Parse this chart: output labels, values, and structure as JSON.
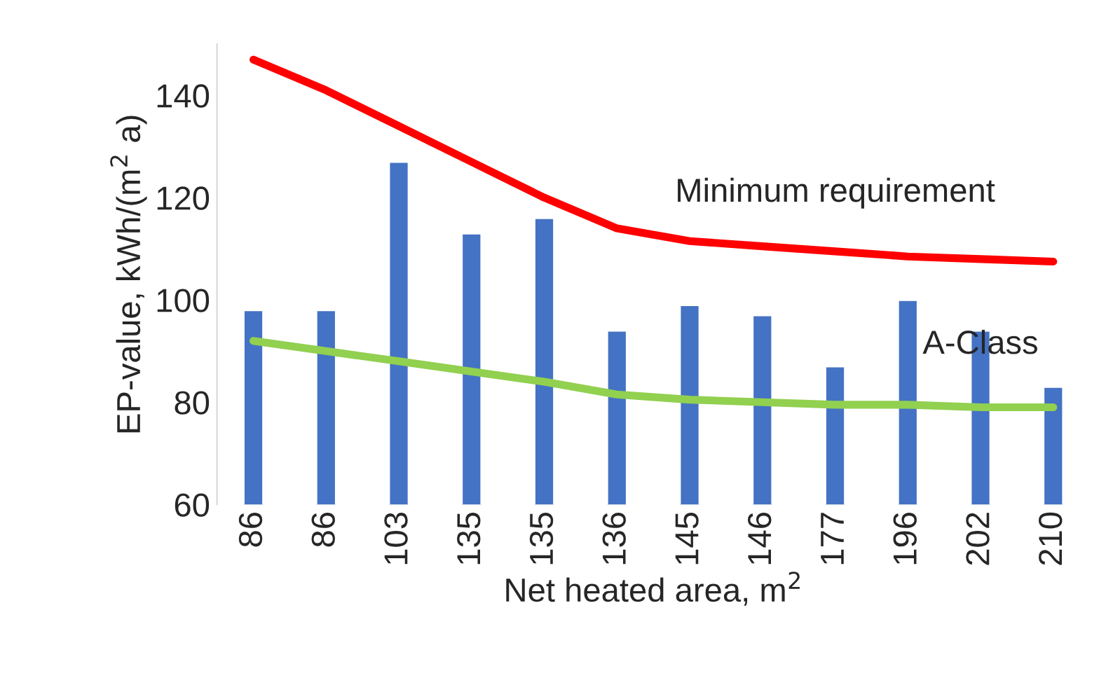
{
  "chart_data": {
    "type": "bar",
    "xlabel": "Net heated area, m$^{2}$",
    "ylabel": "EP-value, kWh/(m$^{2}$ a)",
    "categories": [
      "86",
      "86",
      "103",
      "135",
      "135",
      "136",
      "145",
      "146",
      "177",
      "196",
      "202",
      "210"
    ],
    "series": [
      {
        "color": "#4472c4",
        "values": [
          98,
          98,
          127,
          113,
          116,
          94,
          99,
          97,
          87,
          100,
          94,
          83
        ]
      },
      {
        "type": "line",
        "name": "Minimum requirement",
        "color": "#ff0000",
        "values": [
          147,
          141,
          134,
          127,
          120,
          114,
          111.5,
          110.5,
          109.5,
          108.5,
          108,
          107.5
        ]
      },
      {
        "type": "line",
        "name": "A-Class",
        "color": "#92d050",
        "values": [
          92,
          90,
          88,
          86,
          84,
          81.5,
          80.5,
          80,
          79.5,
          79.5,
          79,
          79
        ]
      }
    ],
    "ylim": [
      60,
      150
    ],
    "yticks": [
      60,
      80,
      100,
      120,
      140
    ],
    "grid": false,
    "legend": false,
    "line_style": "solid",
    "marker": "none"
  }
}
